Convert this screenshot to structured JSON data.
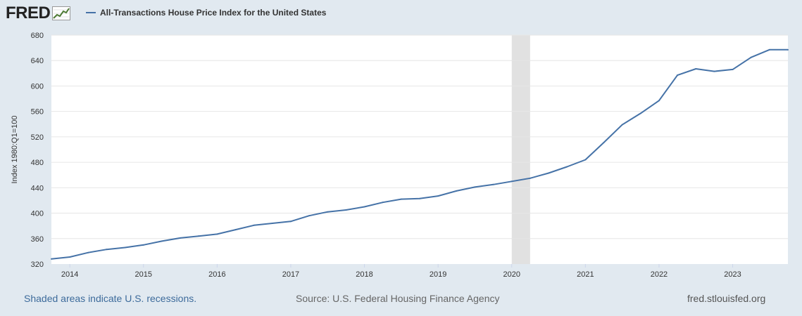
{
  "brand": {
    "name": "FRED",
    "icon": "trend-graph-icon"
  },
  "legend": {
    "label": "All-Transactions House Price Index for the United States",
    "color": "#4572a7"
  },
  "footer": {
    "recessions": "Shaded areas indicate U.S. recessions.",
    "source": "Source: U.S. Federal Housing Finance Agency",
    "site": "fred.stlouisfed.org"
  },
  "chart_data": {
    "type": "line",
    "title": "All-Transactions House Price Index for the United States",
    "ylabel": "Index 1980:Q1=100",
    "xlabel": "",
    "ylim": [
      320,
      680
    ],
    "xlim": [
      2013.75,
      2023.75
    ],
    "yticks": [
      320,
      360,
      400,
      440,
      480,
      520,
      560,
      600,
      640,
      680
    ],
    "xticks": [
      "2014",
      "2015",
      "2016",
      "2017",
      "2018",
      "2019",
      "2020",
      "2021",
      "2022",
      "2023"
    ],
    "grid": true,
    "recession": {
      "start": 2020.0,
      "end": 2020.25,
      "color": "#e1e1e1"
    },
    "series": [
      {
        "name": "All-Transactions House Price Index for the United States",
        "color": "#4572a7",
        "x": [
          2013.75,
          2014.0,
          2014.25,
          2014.5,
          2014.75,
          2015.0,
          2015.25,
          2015.5,
          2015.75,
          2016.0,
          2016.25,
          2016.5,
          2016.75,
          2017.0,
          2017.25,
          2017.5,
          2017.75,
          2018.0,
          2018.25,
          2018.5,
          2018.75,
          2019.0,
          2019.25,
          2019.5,
          2019.75,
          2020.0,
          2020.25,
          2020.5,
          2020.75,
          2021.0,
          2021.25,
          2021.5,
          2021.75,
          2022.0,
          2022.25,
          2022.5,
          2022.75,
          2023.0,
          2023.25,
          2023.5,
          2023.75
        ],
        "values": [
          328,
          331,
          338,
          343,
          346,
          350,
          356,
          361,
          364,
          367,
          374,
          381,
          384,
          387,
          396,
          402,
          405,
          410,
          417,
          422,
          423,
          427,
          435,
          441,
          445,
          450,
          455,
          463,
          473,
          484,
          511,
          539,
          557,
          577,
          617,
          627,
          623,
          626,
          645,
          657,
          657
        ]
      }
    ]
  }
}
